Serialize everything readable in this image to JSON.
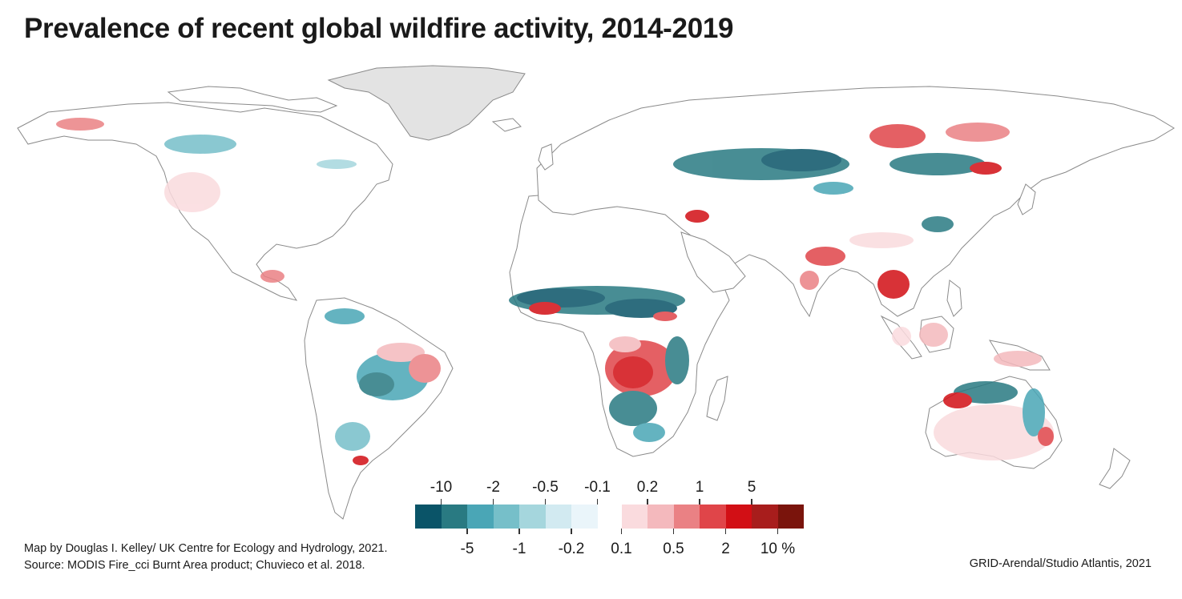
{
  "title": "Prevalence of recent global wildfire activity, 2014-2019",
  "legend": {
    "negative_colors": [
      "#0a5468",
      "#297a82",
      "#4aa6b6",
      "#76bfc9",
      "#a5d6dd",
      "#d2eaf1",
      "#eaf5fa"
    ],
    "positive_colors": [
      "#fadbde",
      "#f4b9bd",
      "#ea8184",
      "#e04549",
      "#d20f15",
      "#a81d1c",
      "#7a140c"
    ],
    "top_labels_negative": [
      "-10",
      "-2",
      "-0.5",
      "-0.1"
    ],
    "bottom_labels_negative": [
      "-5",
      "-1",
      "-0.2"
    ],
    "top_labels_positive": [
      "0.2",
      "1",
      "5"
    ],
    "bottom_labels_positive": [
      "0.1",
      "0.5",
      "2",
      "10 %"
    ]
  },
  "credits": {
    "line1": "Map by Douglas I. Kelley/ UK Centre for Ecology and Hydrology, 2021.",
    "line2": "Source: MODIS Fire_cci Burnt Area product; Chuvieco et al. 2018."
  },
  "publisher": "GRID-Arendal/Studio Atlantis, 2021",
  "map": {
    "land_fill": "#ffffff",
    "coast_stroke": "#888888",
    "ice_fill": "#e3e3e3"
  }
}
